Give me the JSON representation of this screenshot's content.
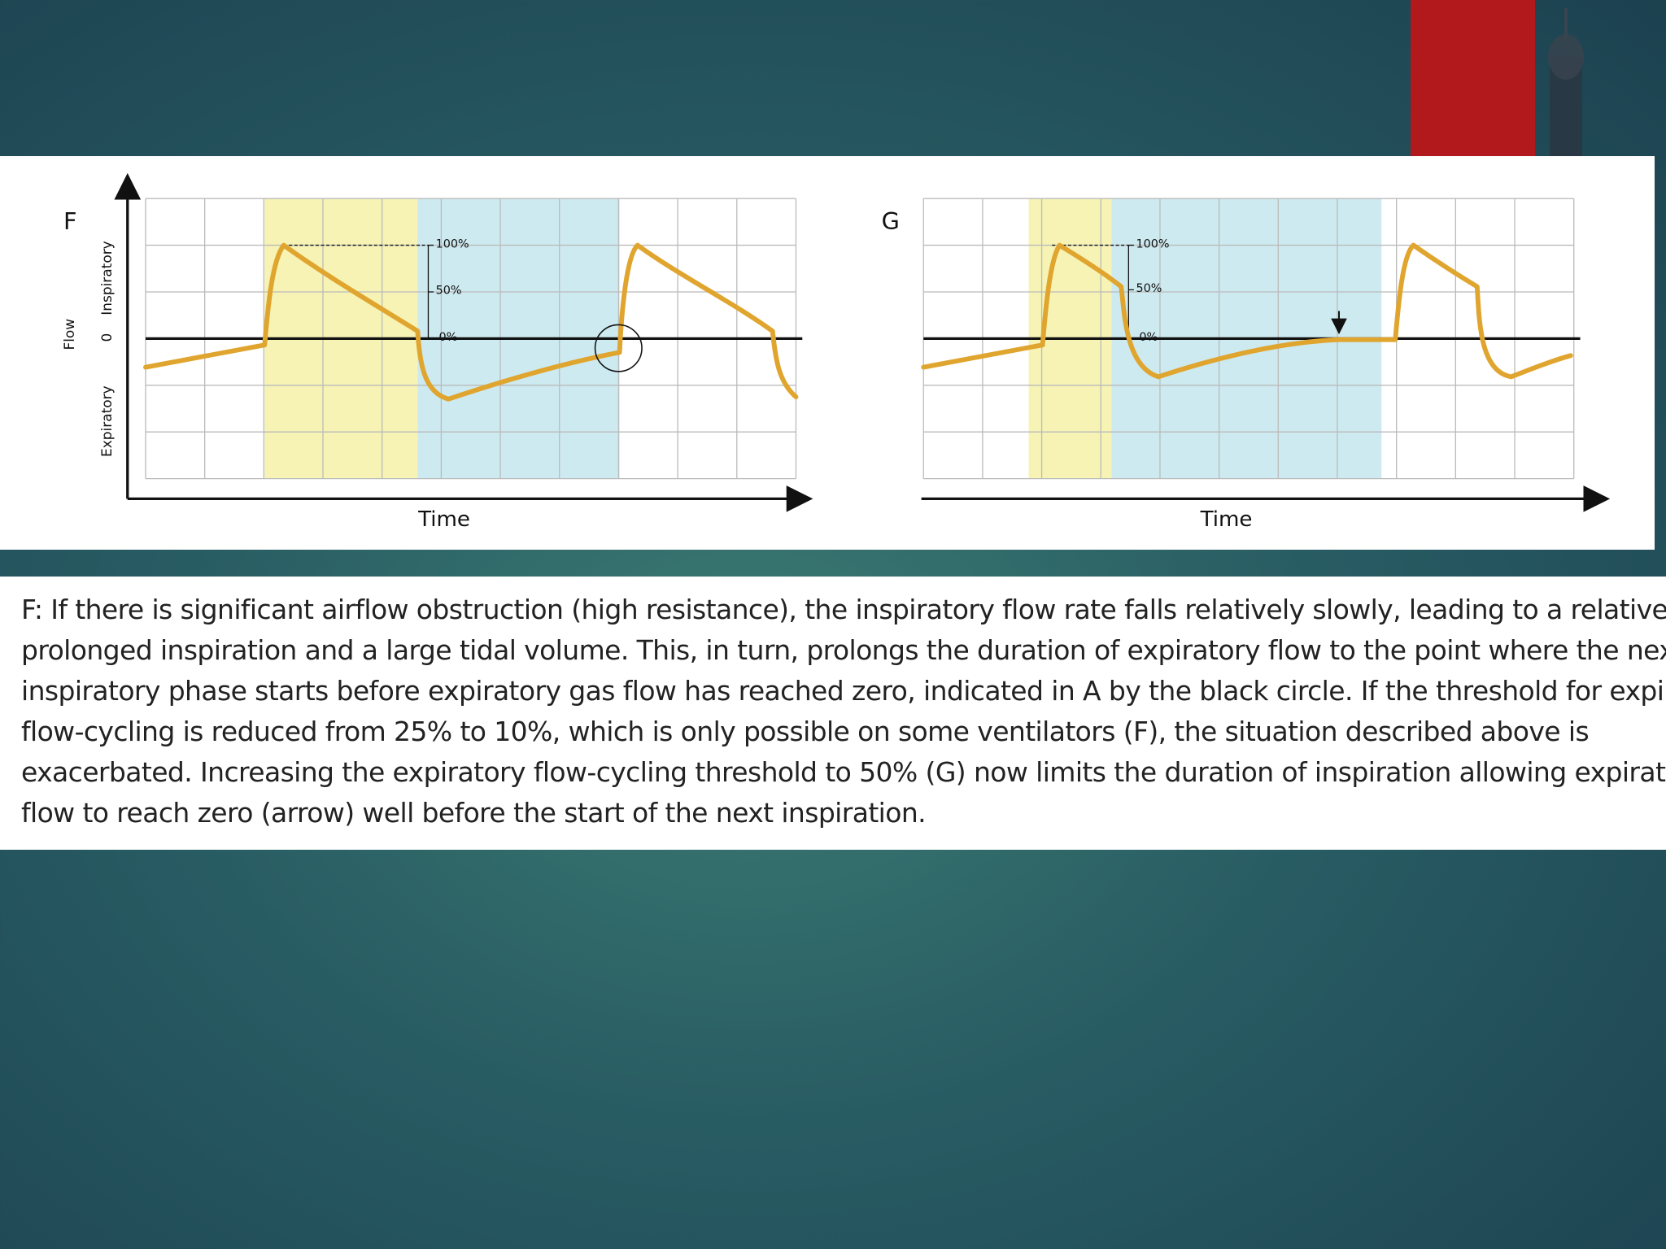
{
  "panels": [
    {
      "label": "F",
      "y_labels": {
        "flow": "Flow",
        "inspiratory": "Inspiratory",
        "zero": "0",
        "expiratory": "Expiratory"
      },
      "x_label": "Time",
      "markers": [
        "100%",
        "50%",
        "0%"
      ]
    },
    {
      "label": "G",
      "x_label": "Time",
      "markers": [
        "100%",
        "50%",
        "0%"
      ]
    }
  ],
  "caption": {
    "lines": [
      "F: If there is significant airflow obstruction (high resistance), the inspiratory flow rate falls relatively slowly, leading to a relatively",
      "prolonged inspiration and a large tidal volume. This, in turn, prolongs the duration of expiratory flow to the point where the next",
      "inspiratory phase starts before expiratory gas flow has reached zero, indicated in A by the black circle. If the threshold for expiratory",
      "flow-cycling is reduced from 25% to 10%, which is only possible on some ventilators (F), the situation described above is",
      "exacerbated. Increasing the expiratory flow-cycling threshold to 50% (G) now limits the duration of inspiration allowing expiratory",
      "flow to reach zero (arrow) well before the start of the next inspiration."
    ]
  }
}
